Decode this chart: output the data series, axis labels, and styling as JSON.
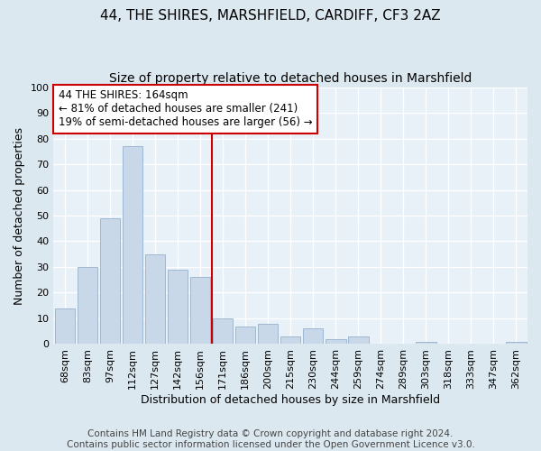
{
  "title": "44, THE SHIRES, MARSHFIELD, CARDIFF, CF3 2AZ",
  "subtitle": "Size of property relative to detached houses in Marshfield",
  "xlabel": "Distribution of detached houses by size in Marshfield",
  "ylabel": "Number of detached properties",
  "categories": [
    "68sqm",
    "83sqm",
    "97sqm",
    "112sqm",
    "127sqm",
    "142sqm",
    "156sqm",
    "171sqm",
    "186sqm",
    "200sqm",
    "215sqm",
    "230sqm",
    "244sqm",
    "259sqm",
    "274sqm",
    "289sqm",
    "303sqm",
    "318sqm",
    "333sqm",
    "347sqm",
    "362sqm"
  ],
  "values": [
    14,
    30,
    49,
    77,
    35,
    29,
    26,
    10,
    7,
    8,
    3,
    6,
    2,
    3,
    0,
    0,
    1,
    0,
    0,
    0,
    1
  ],
  "bar_color": "#c8d8e8",
  "bar_edgecolor": "#a0b8d0",
  "vline_x": 7,
  "vline_color": "#cc0000",
  "annotation_text": "44 THE SHIRES: 164sqm\n← 81% of detached houses are smaller (241)\n19% of semi-detached houses are larger (56) →",
  "annotation_box_color": "#ffffff",
  "annotation_box_edgecolor": "#cc0000",
  "ylim": [
    0,
    100
  ],
  "yticks": [
    0,
    10,
    20,
    30,
    40,
    50,
    60,
    70,
    80,
    90,
    100
  ],
  "footer": "Contains HM Land Registry data © Crown copyright and database right 2024.\nContains public sector information licensed under the Open Government Licence v3.0.",
  "bg_color": "#dce8f0",
  "plot_bg_color": "#e8f0f8",
  "grid_color": "#ffffff",
  "title_fontsize": 11,
  "subtitle_fontsize": 10,
  "label_fontsize": 9,
  "tick_fontsize": 8,
  "footer_fontsize": 7.5
}
